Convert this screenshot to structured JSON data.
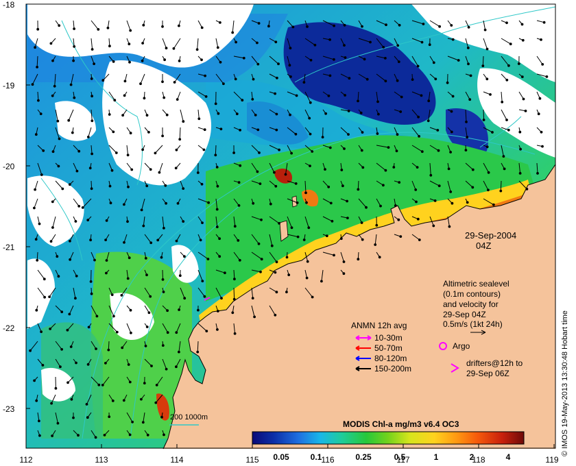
{
  "map": {
    "date_label": "29-Sep-2004",
    "time_label": "04Z",
    "lat_ticks": [
      "-18",
      "-19",
      "-20",
      "-21",
      "-22",
      "-23"
    ],
    "lon_ticks": [
      "112",
      "113",
      "114",
      "115",
      "116",
      "117",
      "118",
      "119"
    ],
    "colors": {
      "land": "#f5c39b",
      "cloud": "#ffffff",
      "contour": "#2ec8c8"
    }
  },
  "altimetry_note": {
    "lines": [
      "Altimetric sealevel",
      "(0.1m contours)",
      "and velocity for",
      "29-Sep 04Z",
      "0.5m/s (1kt 24h)"
    ]
  },
  "anmn": {
    "title": "ANMN 12h avg",
    "items": [
      {
        "label": "10-30m",
        "color": "#ff00ff"
      },
      {
        "label": "50-70m",
        "color": "#ff0000"
      },
      {
        "label": "80-120m",
        "color": "#0000ff"
      },
      {
        "label": "150-200m",
        "color": "#000000"
      }
    ]
  },
  "argo": {
    "label": "Argo",
    "color": "#ff00ff"
  },
  "drifters": {
    "line1": "drifters@12h to",
    "line2": "29-Sep 06Z",
    "color": "#ff00ff"
  },
  "scale_bar": {
    "label": "200  1000m"
  },
  "colorbar": {
    "title": "MODIS Chl-a mg/m3 v6.4 OC3",
    "ticks": [
      "0.05",
      "0.1",
      "0.25",
      "0.5",
      "1",
      "2",
      "4"
    ],
    "stops": [
      "#0a0a78",
      "#0c2fa8",
      "#1f6fe0",
      "#19b7e8",
      "#1fcc9a",
      "#27c83a",
      "#74d21c",
      "#d7e51c",
      "#ffd21e",
      "#ff9a12",
      "#f55a0c",
      "#c8200c",
      "#6e0a08"
    ]
  },
  "credit": "© IMOS 19-May-2013 13:30:48 Hobart time"
}
